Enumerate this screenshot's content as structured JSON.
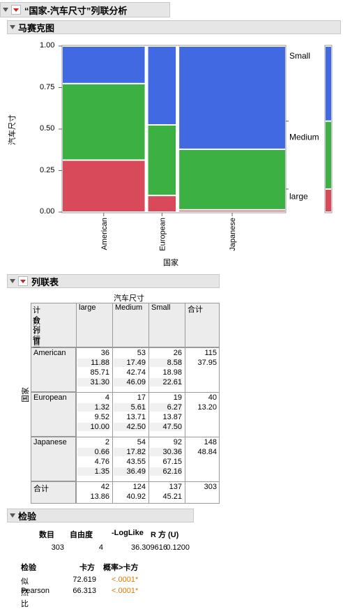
{
  "report": {
    "title": "“国家-汽车尺寸”列联分析"
  },
  "mosaic": {
    "title": "马赛克图",
    "ylabel": "汽车尺寸",
    "xlabel": "国家",
    "y_ticks": [
      "1.00",
      "0.75",
      "0.50",
      "0.25",
      "0.00"
    ],
    "categories": [
      "American",
      "European",
      "Japanese"
    ],
    "right_labels": [
      "Small",
      "Medium",
      "large"
    ],
    "colors": {
      "Small": "#4169e1",
      "Medium": "#3cb043",
      "large": "#d84a5a"
    }
  },
  "chart_data": {
    "type": "mosaic",
    "xlabel": "国家",
    "ylabel": "汽车尺寸",
    "ylim": [
      0,
      1
    ],
    "categories": [
      "American",
      "European",
      "Japanese"
    ],
    "column_share": [
      0.3795,
      0.132,
      0.4884
    ],
    "series": [
      {
        "name": "large",
        "values": [
          0.313,
          0.1,
          0.0135
        ]
      },
      {
        "name": "Medium",
        "values": [
          0.4609,
          0.425,
          0.3649
        ]
      },
      {
        "name": "Small",
        "values": [
          0.2261,
          0.475,
          0.6216
        ]
      }
    ],
    "overall": {
      "large": 0.1386,
      "Medium": 0.4092,
      "Small": 0.4521
    }
  },
  "crosstab": {
    "title": "列联表",
    "col_var": "汽车尺寸",
    "row_var": "国家",
    "stat_labels": [
      "计数",
      "合计百分比",
      "列百分比",
      "行百分比"
    ],
    "columns": [
      "large",
      "Medium",
      "Small",
      "合计"
    ],
    "rows": [
      {
        "label": "American",
        "cells": [
          [
            "36",
            "11.88",
            "85.71",
            "31.30"
          ],
          [
            "53",
            "17.49",
            "42.74",
            "46.09"
          ],
          [
            "26",
            "8.58",
            "18.98",
            "22.61"
          ],
          [
            "115",
            "37.95",
            "",
            ""
          ]
        ]
      },
      {
        "label": "European",
        "cells": [
          [
            "4",
            "1.32",
            "9.52",
            "10.00"
          ],
          [
            "17",
            "5.61",
            "13.71",
            "42.50"
          ],
          [
            "19",
            "6.27",
            "13.87",
            "47.50"
          ],
          [
            "40",
            "13.20",
            "",
            ""
          ]
        ]
      },
      {
        "label": "Japanese",
        "cells": [
          [
            "2",
            "0.66",
            "4.76",
            "1.35"
          ],
          [
            "54",
            "17.82",
            "43.55",
            "36.49"
          ],
          [
            "92",
            "30.36",
            "67.15",
            "62.16"
          ],
          [
            "148",
            "48.84",
            "",
            ""
          ]
        ]
      }
    ],
    "total": {
      "label": "合计",
      "cells": [
        [
          "42",
          "13.86"
        ],
        [
          "124",
          "40.92"
        ],
        [
          "137",
          "45.21"
        ],
        [
          "303",
          ""
        ]
      ]
    }
  },
  "tests": {
    "title": "检验",
    "summary_headers": [
      "数目",
      "自由度",
      "-LogLike",
      "R 方 (U)"
    ],
    "summary_values": [
      "303",
      "4",
      "36.309616",
      "0.1200"
    ],
    "test_headers": [
      "检验",
      "卡方",
      "概率>卡方"
    ],
    "test_rows": [
      {
        "name": "似然比",
        "chisq": "72.619",
        "p": "<.0001*"
      },
      {
        "name": "Pearson",
        "chisq": "66.313",
        "p": "<.0001*"
      }
    ]
  }
}
